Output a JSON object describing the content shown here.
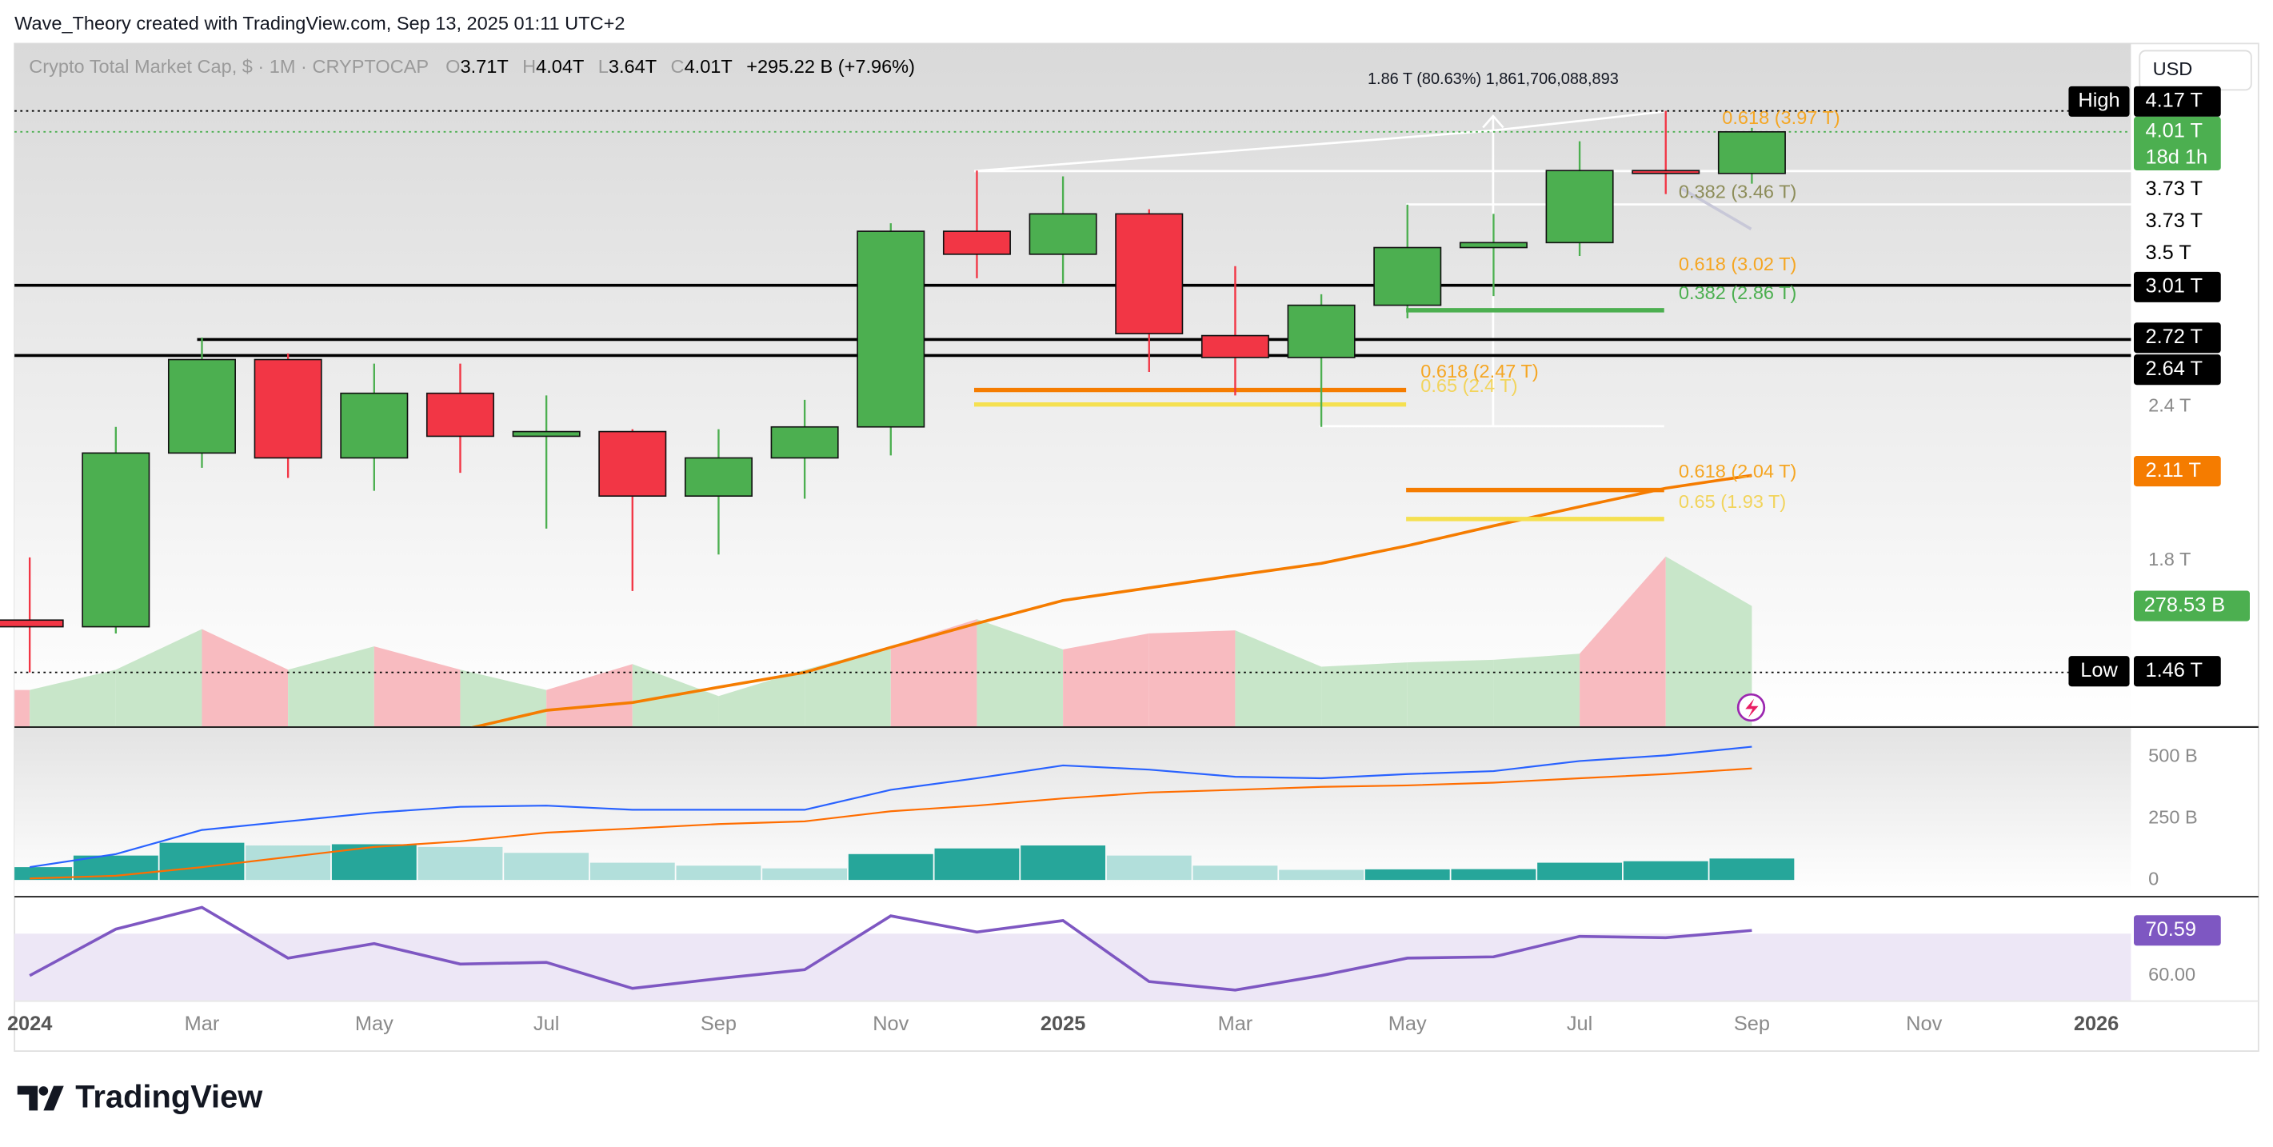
{
  "header": {
    "attribution": "Wave_Theory created with TradingView.com, Sep 13, 2025 01:11 UTC+2",
    "currency": "USD",
    "brand": "TradingView"
  },
  "chart_data": {
    "type": "candlestick",
    "title": "Crypto Total Market Cap, $ · 1M · CRYPTOCAP",
    "ohlc": [
      {
        "key": "O",
        "value": "3.71T"
      },
      {
        "key": "H",
        "value": "4.04T"
      },
      {
        "key": "L",
        "value": "3.64T"
      },
      {
        "key": "C",
        "value": "4.01T"
      }
    ],
    "change": "+295.22 B (+7.96%)",
    "measure": "1.86 T (80.63%)  1,861,706,088,893",
    "categories": [
      "2024",
      null,
      "Mar",
      null,
      "May",
      null,
      "Jul",
      null,
      "Sep",
      null,
      "Nov",
      null,
      "2025",
      null,
      "Mar",
      null,
      "May",
      null,
      "Jul",
      null,
      "Sep",
      null,
      "Nov",
      null,
      "2026"
    ],
    "open": [
      1.61,
      1.59,
      2.2,
      2.62,
      2.18,
      2.46,
      2.27,
      2.29,
      2.03,
      2.18,
      2.31,
      3.33,
      3.19,
      3.44,
      2.74,
      2.63,
      2.9,
      3.23,
      3.26,
      3.73,
      3.71,
      null,
      null,
      null,
      null
    ],
    "high": [
      1.81,
      2.31,
      2.73,
      2.65,
      2.6,
      2.6,
      2.45,
      2.3,
      2.3,
      2.43,
      3.38,
      3.73,
      3.69,
      3.47,
      3.12,
      2.96,
      3.5,
      3.44,
      3.94,
      4.17,
      4.04,
      null,
      null,
      null,
      null
    ],
    "low": [
      1.46,
      1.57,
      2.14,
      2.1,
      2.05,
      2.12,
      1.91,
      1.7,
      1.82,
      2.02,
      2.19,
      3.05,
      3.02,
      2.56,
      2.45,
      2.31,
      2.83,
      2.95,
      3.18,
      3.57,
      3.64,
      null,
      null,
      null,
      null
    ],
    "close": [
      1.59,
      2.2,
      2.62,
      2.18,
      2.46,
      2.27,
      2.29,
      2.03,
      2.18,
      2.31,
      3.33,
      3.19,
      3.44,
      2.75,
      2.63,
      2.9,
      3.23,
      3.26,
      3.73,
      3.71,
      4.01,
      null,
      null,
      null,
      null
    ],
    "up_color": "#4caf50",
    "down_color": "#f23645",
    "log_scale": true,
    "grid": false,
    "ylim": [
      1.32,
      4.73
    ],
    "yticks": [
      {
        "value": 2.4,
        "label": "2.4 T"
      },
      {
        "value": 1.8,
        "label": "1.8 T"
      }
    ],
    "price_labels": [
      {
        "value": 4.17,
        "label": "4.17 T",
        "tag": "High",
        "color": "#000000",
        "text_color": "#ffffff",
        "line": "dotted"
      },
      {
        "value": 4.01,
        "label": "4.01 T",
        "countdown": "18d 1h",
        "color": "#4caf50",
        "text_color": "#ffffff",
        "line": "dotted"
      },
      {
        "value": 3.73,
        "label": "3.73 T",
        "color": "#ffffff",
        "text_color": "#000000"
      },
      {
        "value": 3.73,
        "label": "3.73 T",
        "color": "#ffffff",
        "text_color": "#000000"
      },
      {
        "value": 3.5,
        "label": "3.5 T",
        "color": "#ffffff",
        "text_color": "#000000"
      },
      {
        "value": 3.01,
        "label": "3.01 T",
        "color": "#000000",
        "text_color": "#ffffff",
        "line": "solid"
      },
      {
        "value": 2.72,
        "label": "2.72 T",
        "color": "#000000",
        "text_color": "#ffffff",
        "line": "solid"
      },
      {
        "value": 2.64,
        "label": "2.64 T",
        "color": "#000000",
        "text_color": "#ffffff",
        "line": "solid"
      },
      {
        "value": 2.11,
        "label": "2.11 T",
        "color": "#f57c00",
        "text_color": "#ffffff"
      },
      {
        "value": 1.46,
        "label": "1.46 T",
        "tag": "Low",
        "color": "#000000",
        "text_color": "#ffffff",
        "line": "dotted"
      }
    ],
    "ma": {
      "color": "#f57c00",
      "values": [
        null,
        null,
        null,
        null,
        null,
        1.31,
        1.36,
        1.38,
        1.42,
        1.46,
        1.53,
        1.6,
        1.67,
        1.71,
        1.75,
        1.79,
        1.85,
        1.92,
        1.99,
        2.06,
        2.11,
        null,
        null,
        null,
        null
      ]
    },
    "volume": {
      "ylim": [
        0,
        1580
      ],
      "up_color": "#c8e6c9",
      "down_color": "#f8bbc0",
      "label_color": "#4caf50",
      "values": [
        84,
        131,
        225,
        131,
        185,
        131,
        84,
        144,
        70,
        131,
        185,
        248,
        178,
        215,
        222,
        138,
        148,
        154,
        168,
        393,
        278.53,
        null,
        null,
        null,
        null
      ],
      "value_labels": [
        null,
        null,
        null,
        null,
        null,
        null,
        null,
        null,
        null,
        null,
        null,
        null,
        null,
        null,
        null,
        null,
        null,
        null,
        null,
        null,
        "278.53 B",
        null,
        null,
        null,
        null
      ]
    },
    "fib_labels": [
      {
        "text": "0.618 (3.02 T)",
        "color": "#f5a623"
      },
      {
        "text": "0.382 (2.86 T)",
        "color": "#4caf50"
      },
      {
        "text": "0.618 (2.47 T)",
        "color": "#f5a623"
      },
      {
        "text": "0.65 (2.4 T)",
        "color": "#f2d45c"
      },
      {
        "text": "0.618 (2.04 T)",
        "color": "#f5a623"
      },
      {
        "text": "0.65 (1.93 T)",
        "color": "#f2d45c"
      },
      {
        "text": "0.382 (3.46 T)",
        "color": "#8d8d5a"
      },
      {
        "text": "0.618 (3.97 T)",
        "color": "#f5a623"
      }
    ],
    "macd": {
      "ylim": [
        -65,
        618
      ],
      "yticks": [
        0,
        {
          "value": 250,
          "label": "250 B"
        },
        {
          "value": 500,
          "label": "500 B"
        }
      ],
      "macd": {
        "color": "#2962ff",
        "values": [
          52,
          105,
          203,
          238,
          273,
          297,
          302,
          285,
          285,
          285,
          366,
          413,
          465,
          448,
          419,
          413,
          430,
          442,
          483,
          506,
          541,
          null,
          null,
          null,
          null
        ]
      },
      "signal": {
        "color": "#ff6d00",
        "values": [
          6,
          17,
          52,
          93,
          134,
          157,
          192,
          209,
          227,
          238,
          279,
          302,
          331,
          355,
          366,
          378,
          384,
          395,
          413,
          430,
          453,
          null,
          null,
          null,
          null
        ]
      },
      "histogram": {
        "up_color": "#26a69a",
        "down_color": "#b2dfdb",
        "values": [
          52,
          99,
          151,
          140,
          145,
          134,
          110,
          70,
          58,
          47,
          105,
          128,
          140,
          99,
          58,
          41,
          43,
          44,
          70,
          76,
          87,
          null,
          null,
          null,
          null
        ]
      }
    },
    "rsi": {
      "ylim": [
        54.2,
        78
      ],
      "color": "#7e57c2",
      "yticks": [
        {
          "value": 60,
          "label": "60.00"
        }
      ],
      "values": [
        60.0,
        70.9,
        76.0,
        64.1,
        67.5,
        62.7,
        63.1,
        57.0,
        59.3,
        61.4,
        74.0,
        70.2,
        72.9,
        58.6,
        56.6,
        60.0,
        64.1,
        64.4,
        69.2,
        68.9,
        70.59,
        null,
        null,
        null,
        null
      ],
      "value_labels": [
        null,
        null,
        null,
        null,
        null,
        null,
        null,
        null,
        null,
        null,
        null,
        null,
        null,
        null,
        null,
        null,
        null,
        null,
        null,
        null,
        "70.59",
        null,
        null,
        null,
        null
      ]
    }
  }
}
